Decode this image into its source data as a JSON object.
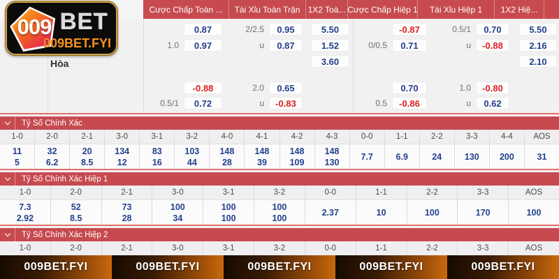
{
  "theme": {
    "page_bg": "#f4f3f4",
    "header_red": "#c64a4f",
    "odds_blue": "#23408d",
    "odds_red": "#e01f1f",
    "label_gray": "#6f6f6f",
    "footer_orange": "#c8680d",
    "gold": "#cfa54e",
    "brand_orange": "#f7941d"
  },
  "brand": {
    "number": "009",
    "word": "BET",
    "domain": "009BET.FYI"
  },
  "odds_header": {
    "columns": [
      "Cược Chấp Toàn ...",
      "Tài Xỉu Toàn Trận",
      "1X2 Toà...",
      "Cược Chấp Hiệp 1",
      "Tài Xỉu Hiệp 1",
      "1X2 Hiệ..."
    ]
  },
  "odds": {
    "draw_label": "Hòa",
    "cells": [
      {
        "r": 0,
        "g": 0,
        "v": "0.87"
      },
      {
        "r": 0,
        "g": 1,
        "label": "2/2.5",
        "v": "0.95"
      },
      {
        "r": 0,
        "g": 2,
        "v": "5.50"
      },
      {
        "r": 0,
        "g": 3,
        "v": "-0.87"
      },
      {
        "r": 0,
        "g": 4,
        "label": "0.5/1",
        "v": "0.70"
      },
      {
        "r": 0,
        "g": 5,
        "v": "5.50"
      },
      {
        "r": 1,
        "g": 0,
        "label": "1.0",
        "v": "0.97"
      },
      {
        "r": 1,
        "g": 1,
        "label": "u",
        "v": "0.87"
      },
      {
        "r": 1,
        "g": 2,
        "v": "1.52"
      },
      {
        "r": 1,
        "g": 3,
        "label": "0/0.5",
        "v": "0.71"
      },
      {
        "r": 1,
        "g": 4,
        "label": "u",
        "v": "-0.88"
      },
      {
        "r": 1,
        "g": 5,
        "v": "2.16"
      },
      {
        "r": 2,
        "g": 2,
        "v": "3.60"
      },
      {
        "r": 2,
        "g": 5,
        "v": "2.10"
      },
      {
        "r": 3,
        "g": 0,
        "v": "-0.88"
      },
      {
        "r": 3,
        "g": 1,
        "label": "2.0",
        "v": "0.65"
      },
      {
        "r": 3,
        "g": 3,
        "v": "0.70"
      },
      {
        "r": 3,
        "g": 4,
        "label": "1.0",
        "v": "-0.80"
      },
      {
        "r": 4,
        "g": 0,
        "label": "0.5/1",
        "v": "0.72"
      },
      {
        "r": 4,
        "g": 1,
        "label": "u",
        "v": "-0.83"
      },
      {
        "r": 4,
        "g": 3,
        "label": "0.5",
        "v": "-0.86"
      },
      {
        "r": 4,
        "g": 4,
        "label": "u",
        "v": "0.62"
      }
    ]
  },
  "score_sections": [
    {
      "title": "Tỷ Số Chính Xác",
      "columns": [
        "1-0",
        "2-0",
        "2-1",
        "3-0",
        "3-1",
        "3-2",
        "4-0",
        "4-1",
        "4-2",
        "4-3",
        "0-0",
        "1-1",
        "2-2",
        "3-3",
        "4-4",
        "AOS"
      ],
      "values_top": [
        "11",
        "32",
        "20",
        "134",
        "83",
        "103",
        "148",
        "148",
        "148",
        "148",
        "7.7",
        "6.9",
        "24",
        "130",
        "200",
        "31"
      ],
      "values_bottom": [
        "5",
        "6.2",
        "8.5",
        "12",
        "16",
        "44",
        "28",
        "39",
        "109",
        "130",
        null,
        null,
        null,
        null,
        null,
        null
      ]
    },
    {
      "title": "Tỷ Số Chính Xác Hiệp 1",
      "columns": [
        "1-0",
        "2-0",
        "2-1",
        "3-0",
        "3-1",
        "3-2",
        "0-0",
        "1-1",
        "2-2",
        "3-3",
        "AOS"
      ],
      "values_top": [
        "7.3",
        "52",
        "73",
        "100",
        "100",
        "100",
        "2.37",
        "10",
        "100",
        "170",
        "100"
      ],
      "values_bottom": [
        "2.92",
        "8.5",
        "28",
        "34",
        "100",
        "100",
        null,
        null,
        null,
        null,
        null
      ]
    },
    {
      "title": "Tỷ Số Chính Xác Hiệp 2",
      "columns": [
        "1-0",
        "2-0",
        "2-1",
        "3-0",
        "3-1",
        "3-2",
        "0-0",
        "1-1",
        "2-2",
        "3-3",
        "AOS"
      ]
    }
  ],
  "footer": {
    "items": [
      "009BET.FYI",
      "009BET.FYI",
      "009BET.FYI",
      "009BET.FYI",
      "009BET.FYI"
    ]
  }
}
